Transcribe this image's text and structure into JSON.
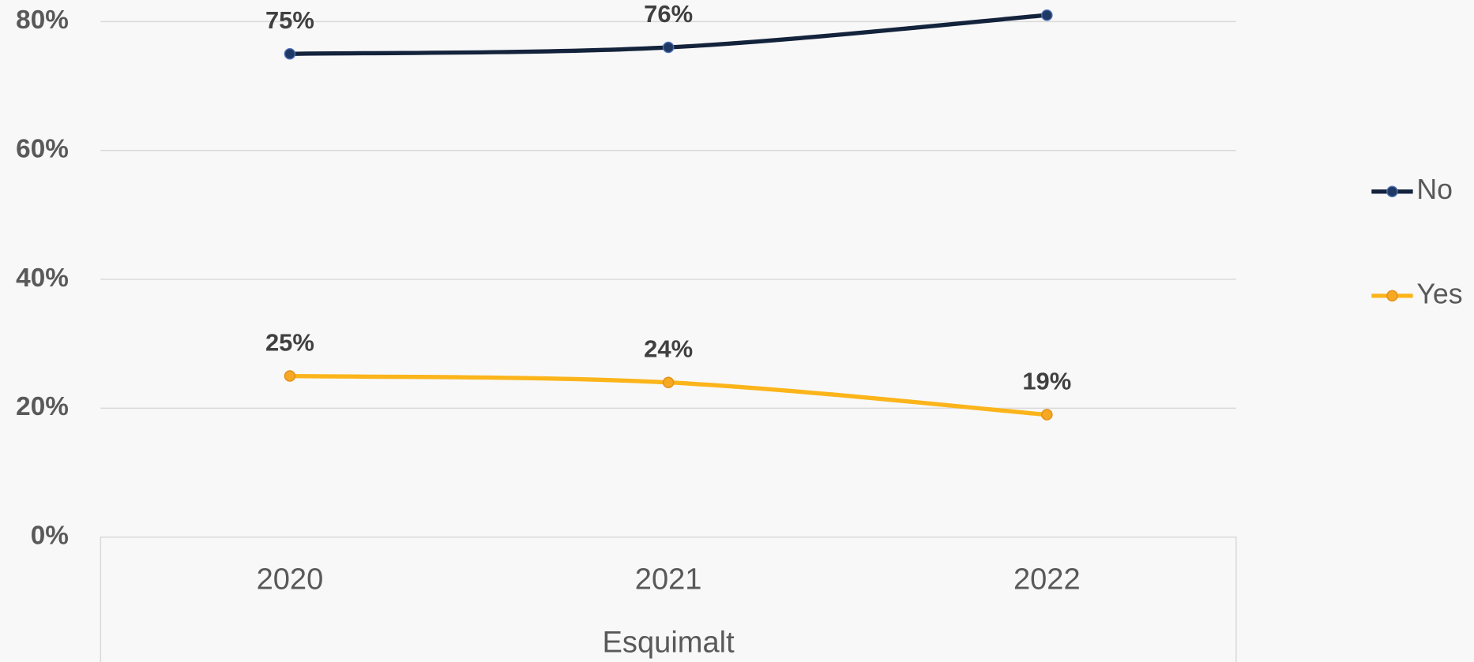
{
  "chart_data": {
    "type": "line",
    "categories": [
      "2020",
      "2021",
      "2022"
    ],
    "x_axis_label": "Esquimalt",
    "series": [
      {
        "name": "No",
        "color": "#14233c",
        "marker_color": "#1f3864",
        "values": [
          75,
          76,
          81
        ],
        "value_labels": [
          "75%",
          "76%",
          null
        ]
      },
      {
        "name": "Yes",
        "color": "#fbb41a",
        "marker_color": "#f7a823",
        "values": [
          25,
          24,
          19
        ],
        "value_labels": [
          "25%",
          "24%",
          "19%"
        ]
      }
    ],
    "ylim": [
      0,
      80
    ],
    "yticks": [
      {
        "value": 0,
        "label": "0%"
      },
      {
        "value": 20,
        "label": "20%"
      },
      {
        "value": 40,
        "label": "40%"
      },
      {
        "value": 60,
        "label": "60%"
      },
      {
        "value": 80,
        "label": "80%"
      }
    ],
    "grid": true,
    "legend": "right"
  }
}
